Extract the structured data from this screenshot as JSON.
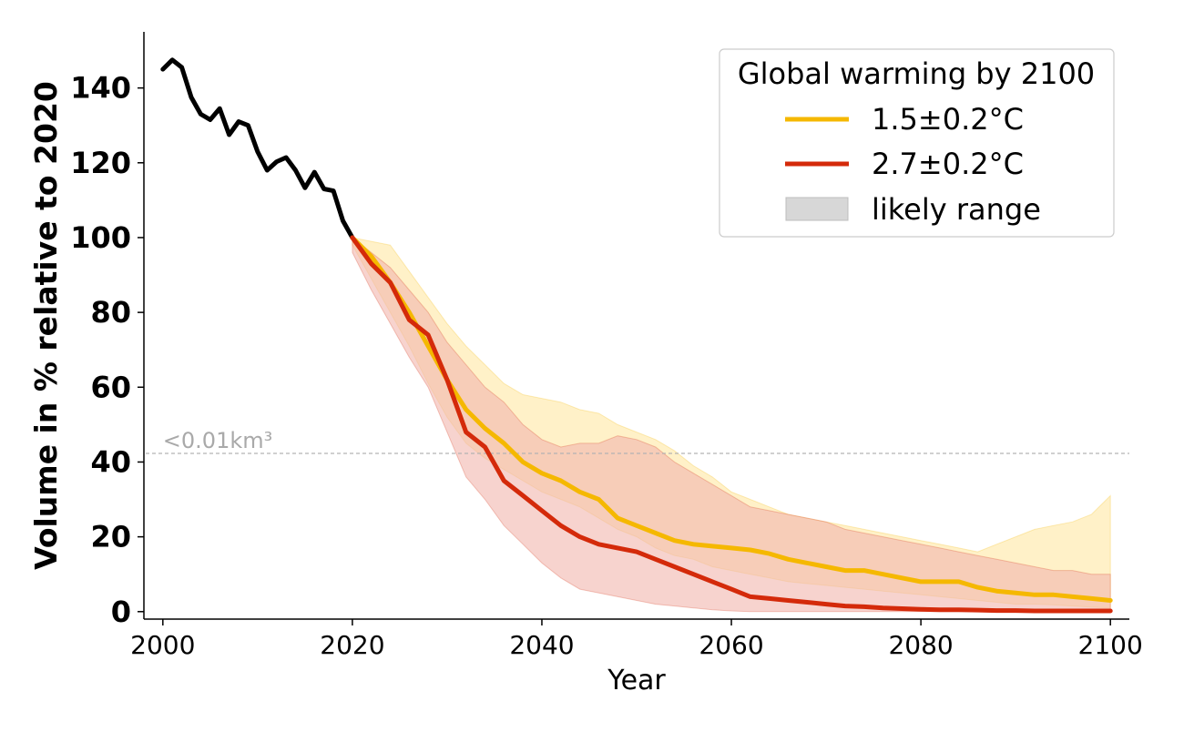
{
  "chart_data": {
    "type": "line",
    "xlabel": "Year",
    "ylabel": "Volume in % relative to 2020",
    "xlim": [
      1998,
      2102
    ],
    "ylim": [
      -2,
      155
    ],
    "x_ticks": [
      2000,
      2020,
      2040,
      2060,
      2080,
      2100
    ],
    "y_ticks": [
      0,
      20,
      40,
      60,
      80,
      100,
      120,
      140
    ],
    "grid": false,
    "legend": {
      "title": "Global warming by 2100",
      "placement": "top-right",
      "entries": [
        "1.5±0.2°C",
        "2.7±0.2°C",
        "likely range"
      ]
    },
    "threshold": {
      "y": 42.3,
      "label": "<0.01km³",
      "color": "#b3b3b3"
    },
    "colors": {
      "historical": "#000000",
      "warm_1_5": "#f5b800",
      "warm_2_7": "#d42a0a",
      "band_1_5": "#ffecb5",
      "band_2_7": "#f2b6ad",
      "likely_range_swatch": "#d7d7d7"
    },
    "historical": {
      "x": [
        2000,
        2001,
        2002,
        2003,
        2004,
        2005,
        2006,
        2007,
        2008,
        2009,
        2010,
        2011,
        2012,
        2013,
        2014,
        2015,
        2016,
        2017,
        2018,
        2019,
        2020
      ],
      "y": [
        145,
        147.5,
        145.5,
        137.5,
        133,
        131.5,
        134.5,
        127.5,
        131,
        130,
        123,
        118,
        120.3,
        121.4,
        118,
        113.3,
        117.5,
        113,
        112.5,
        104.5,
        100
      ]
    },
    "series": [
      {
        "name": "1.5±0.2°C",
        "x": [
          2020,
          2022,
          2024,
          2026,
          2028,
          2030,
          2032,
          2034,
          2036,
          2038,
          2040,
          2042,
          2044,
          2046,
          2048,
          2050,
          2052,
          2054,
          2056,
          2058,
          2060,
          2062,
          2064,
          2066,
          2068,
          2070,
          2072,
          2074,
          2076,
          2078,
          2080,
          2082,
          2084,
          2086,
          2088,
          2090,
          2092,
          2094,
          2096,
          2098,
          2100
        ],
        "y": [
          100,
          95,
          88,
          80,
          71,
          62,
          54,
          49,
          45,
          40,
          37,
          35,
          32,
          30,
          25,
          23,
          21,
          19,
          18,
          17.5,
          17,
          16.5,
          15.5,
          14,
          13,
          12,
          11,
          11,
          10,
          9,
          8,
          8,
          8,
          6.5,
          5.5,
          5,
          4.5,
          4.5,
          4,
          3.5,
          3
        ],
        "low": [
          98,
          89,
          80,
          71,
          61,
          52,
          45,
          41,
          38,
          35,
          32,
          30,
          28,
          25,
          22,
          20,
          17,
          15,
          14,
          12,
          11,
          10,
          9,
          8,
          7.5,
          7,
          6.5,
          6,
          5.5,
          5,
          4.5,
          4,
          3.5,
          3,
          2.5,
          2,
          2,
          1.8,
          1.5,
          1.2,
          1
        ],
        "high": [
          100,
          99,
          98,
          91,
          84,
          77,
          71,
          66,
          61,
          58,
          57,
          56,
          54,
          53,
          50,
          48,
          46,
          43,
          39,
          36,
          32,
          30,
          28,
          26,
          25,
          24,
          23,
          22,
          21,
          20,
          19,
          18,
          17,
          16,
          18,
          20,
          22,
          23,
          24,
          26,
          31
        ]
      },
      {
        "name": "2.7±0.2°C",
        "x": [
          2020,
          2022,
          2024,
          2026,
          2028,
          2030,
          2032,
          2034,
          2036,
          2038,
          2040,
          2042,
          2044,
          2046,
          2048,
          2050,
          2052,
          2054,
          2056,
          2058,
          2060,
          2062,
          2064,
          2066,
          2068,
          2070,
          2072,
          2074,
          2076,
          2078,
          2080,
          2082,
          2084,
          2086,
          2088,
          2090,
          2092,
          2094,
          2096,
          2098,
          2100
        ],
        "y": [
          100,
          93,
          88,
          78,
          74,
          62,
          48,
          44,
          35,
          31,
          27,
          23,
          20,
          18,
          17,
          16,
          14,
          12,
          10,
          8,
          6,
          4,
          3.5,
          3,
          2.5,
          2,
          1.5,
          1.3,
          1,
          0.8,
          0.6,
          0.5,
          0.5,
          0.4,
          0.3,
          0.3,
          0.2,
          0.2,
          0.2,
          0.2,
          0.2
        ],
        "low": [
          96,
          86,
          77,
          68,
          60,
          48,
          36,
          30,
          23,
          18,
          13,
          9,
          6,
          5,
          4,
          3,
          2,
          1.5,
          1,
          0.5,
          0.2,
          0,
          0,
          0,
          0,
          0,
          0,
          0,
          0,
          0,
          0,
          0,
          0,
          0,
          0,
          0,
          0,
          0,
          0,
          0,
          0
        ],
        "high": [
          100,
          96,
          92,
          86,
          80,
          72,
          66,
          60,
          56,
          50,
          46,
          44,
          45,
          45,
          47,
          46,
          44,
          40,
          37,
          34,
          31,
          28,
          27,
          26,
          25,
          24,
          22,
          21,
          20,
          19,
          18,
          17,
          16,
          15,
          14,
          13,
          12,
          11,
          11,
          10,
          10
        ]
      }
    ]
  }
}
